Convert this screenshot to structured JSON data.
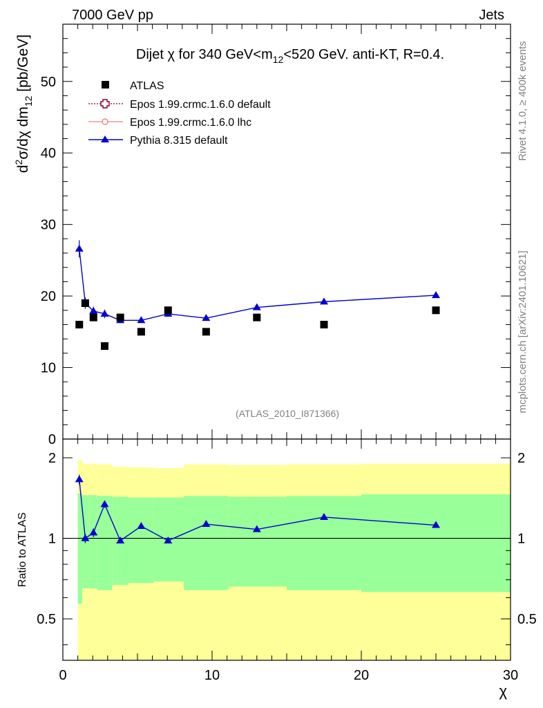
{
  "header": {
    "left": "7000 GeV pp",
    "right": "Jets"
  },
  "side_labels": {
    "rivet": "Rivet 4.1.0, ≥ 400k events",
    "mcplots": "mcplots.cern.ch [arXiv:2401.10621]"
  },
  "colors": {
    "data": "#000000",
    "epos_default": "#800020",
    "epos_lhc": "#f08080",
    "pythia": "#0000d0",
    "band_outer": "#ffff99",
    "band_inner": "#99ff99"
  },
  "chart_data": [
    {
      "type": "scatter",
      "title": {
        "pre": "Dijet ",
        "chi": "χ",
        "mid": " for 340 GeV<m",
        "sub": "12",
        "post": "<520 GeV.  anti-KT, R=0.4."
      },
      "ylabel": {
        "d": "d",
        "sup2": "2",
        "sigma": "σ/dχ dm",
        "sub12": "12",
        "unit": " [pb/GeV]"
      },
      "xlim": [
        0,
        30
      ],
      "ylim": [
        0,
        58
      ],
      "yticks": [
        "0",
        "10",
        "20",
        "30",
        "40",
        "50"
      ],
      "analysis_tag": "(ATLAS_2010_I871366)",
      "legend": [
        "ATLAS",
        "Epos 1.99.crmc.1.6.0 default",
        "Epos 1.99.crmc.1.6.0 lhc",
        "Pythia 8.315 default"
      ],
      "series": [
        {
          "name": "ATLAS",
          "x": [
            1.1,
            1.5,
            2.05,
            2.8,
            3.85,
            5.25,
            7.05,
            9.6,
            13.0,
            17.5,
            25.0
          ],
          "y": [
            16,
            19,
            17,
            13,
            17,
            15,
            18,
            15,
            17,
            16,
            18
          ]
        },
        {
          "name": "Pythia 8.315 default",
          "x": [
            1.1,
            1.5,
            2.05,
            2.8,
            3.85,
            5.25,
            7.05,
            9.6,
            13.0,
            17.5,
            25.0
          ],
          "y": [
            26.6,
            19.0,
            17.9,
            17.5,
            16.6,
            16.6,
            17.5,
            16.9,
            18.4,
            19.2,
            20.1
          ],
          "yerr": [
            1.2,
            0.8,
            0.6,
            0.6,
            0.4,
            0.3,
            0.3,
            0.2,
            0.2,
            0.2,
            0.2
          ]
        }
      ]
    },
    {
      "type": "line",
      "ylabel": "Ratio to ATLAS",
      "xlabel": "χ",
      "xlim": [
        0,
        30
      ],
      "ylim": [
        0.35,
        2.35
      ],
      "xticks": [
        "0",
        "10",
        "20",
        "30"
      ],
      "yticks": [
        "0.5",
        "1",
        "2"
      ],
      "bands": {
        "edges": [
          1.0,
          1.3,
          1.8,
          2.3,
          3.3,
          4.4,
          6.1,
          8.1,
          11.1,
          15.0,
          20.0,
          30.0
        ],
        "inner_low": [
          0.57,
          0.65,
          0.65,
          0.64,
          0.67,
          0.68,
          0.69,
          0.64,
          0.66,
          0.64,
          0.63
        ],
        "inner_high": [
          1.47,
          1.45,
          1.45,
          1.44,
          1.43,
          1.42,
          1.42,
          1.44,
          1.43,
          1.44,
          1.46
        ],
        "outer_low": [
          0.0,
          0.0,
          0.0,
          0.0,
          0.0,
          0.0,
          0.0,
          0.0,
          0.0,
          0.0,
          0.0
        ],
        "outer_high": [
          1.96,
          1.9,
          1.9,
          1.89,
          1.85,
          1.84,
          1.83,
          1.89,
          1.88,
          1.89,
          1.9
        ]
      },
      "series": [
        {
          "name": "Pythia 8.315 default / ATLAS",
          "x": [
            1.1,
            1.5,
            2.05,
            2.8,
            3.85,
            5.25,
            7.05,
            9.6,
            13.0,
            17.5,
            25.0
          ],
          "y": [
            1.66,
            1.0,
            1.05,
            1.34,
            0.98,
            1.11,
            0.98,
            1.13,
            1.08,
            1.2,
            1.12
          ],
          "yerr": [
            0.07,
            0.04,
            0.04,
            0.04,
            0.02,
            0.02,
            0.02,
            0.02,
            0.02,
            0.02,
            0.02
          ]
        }
      ]
    }
  ]
}
